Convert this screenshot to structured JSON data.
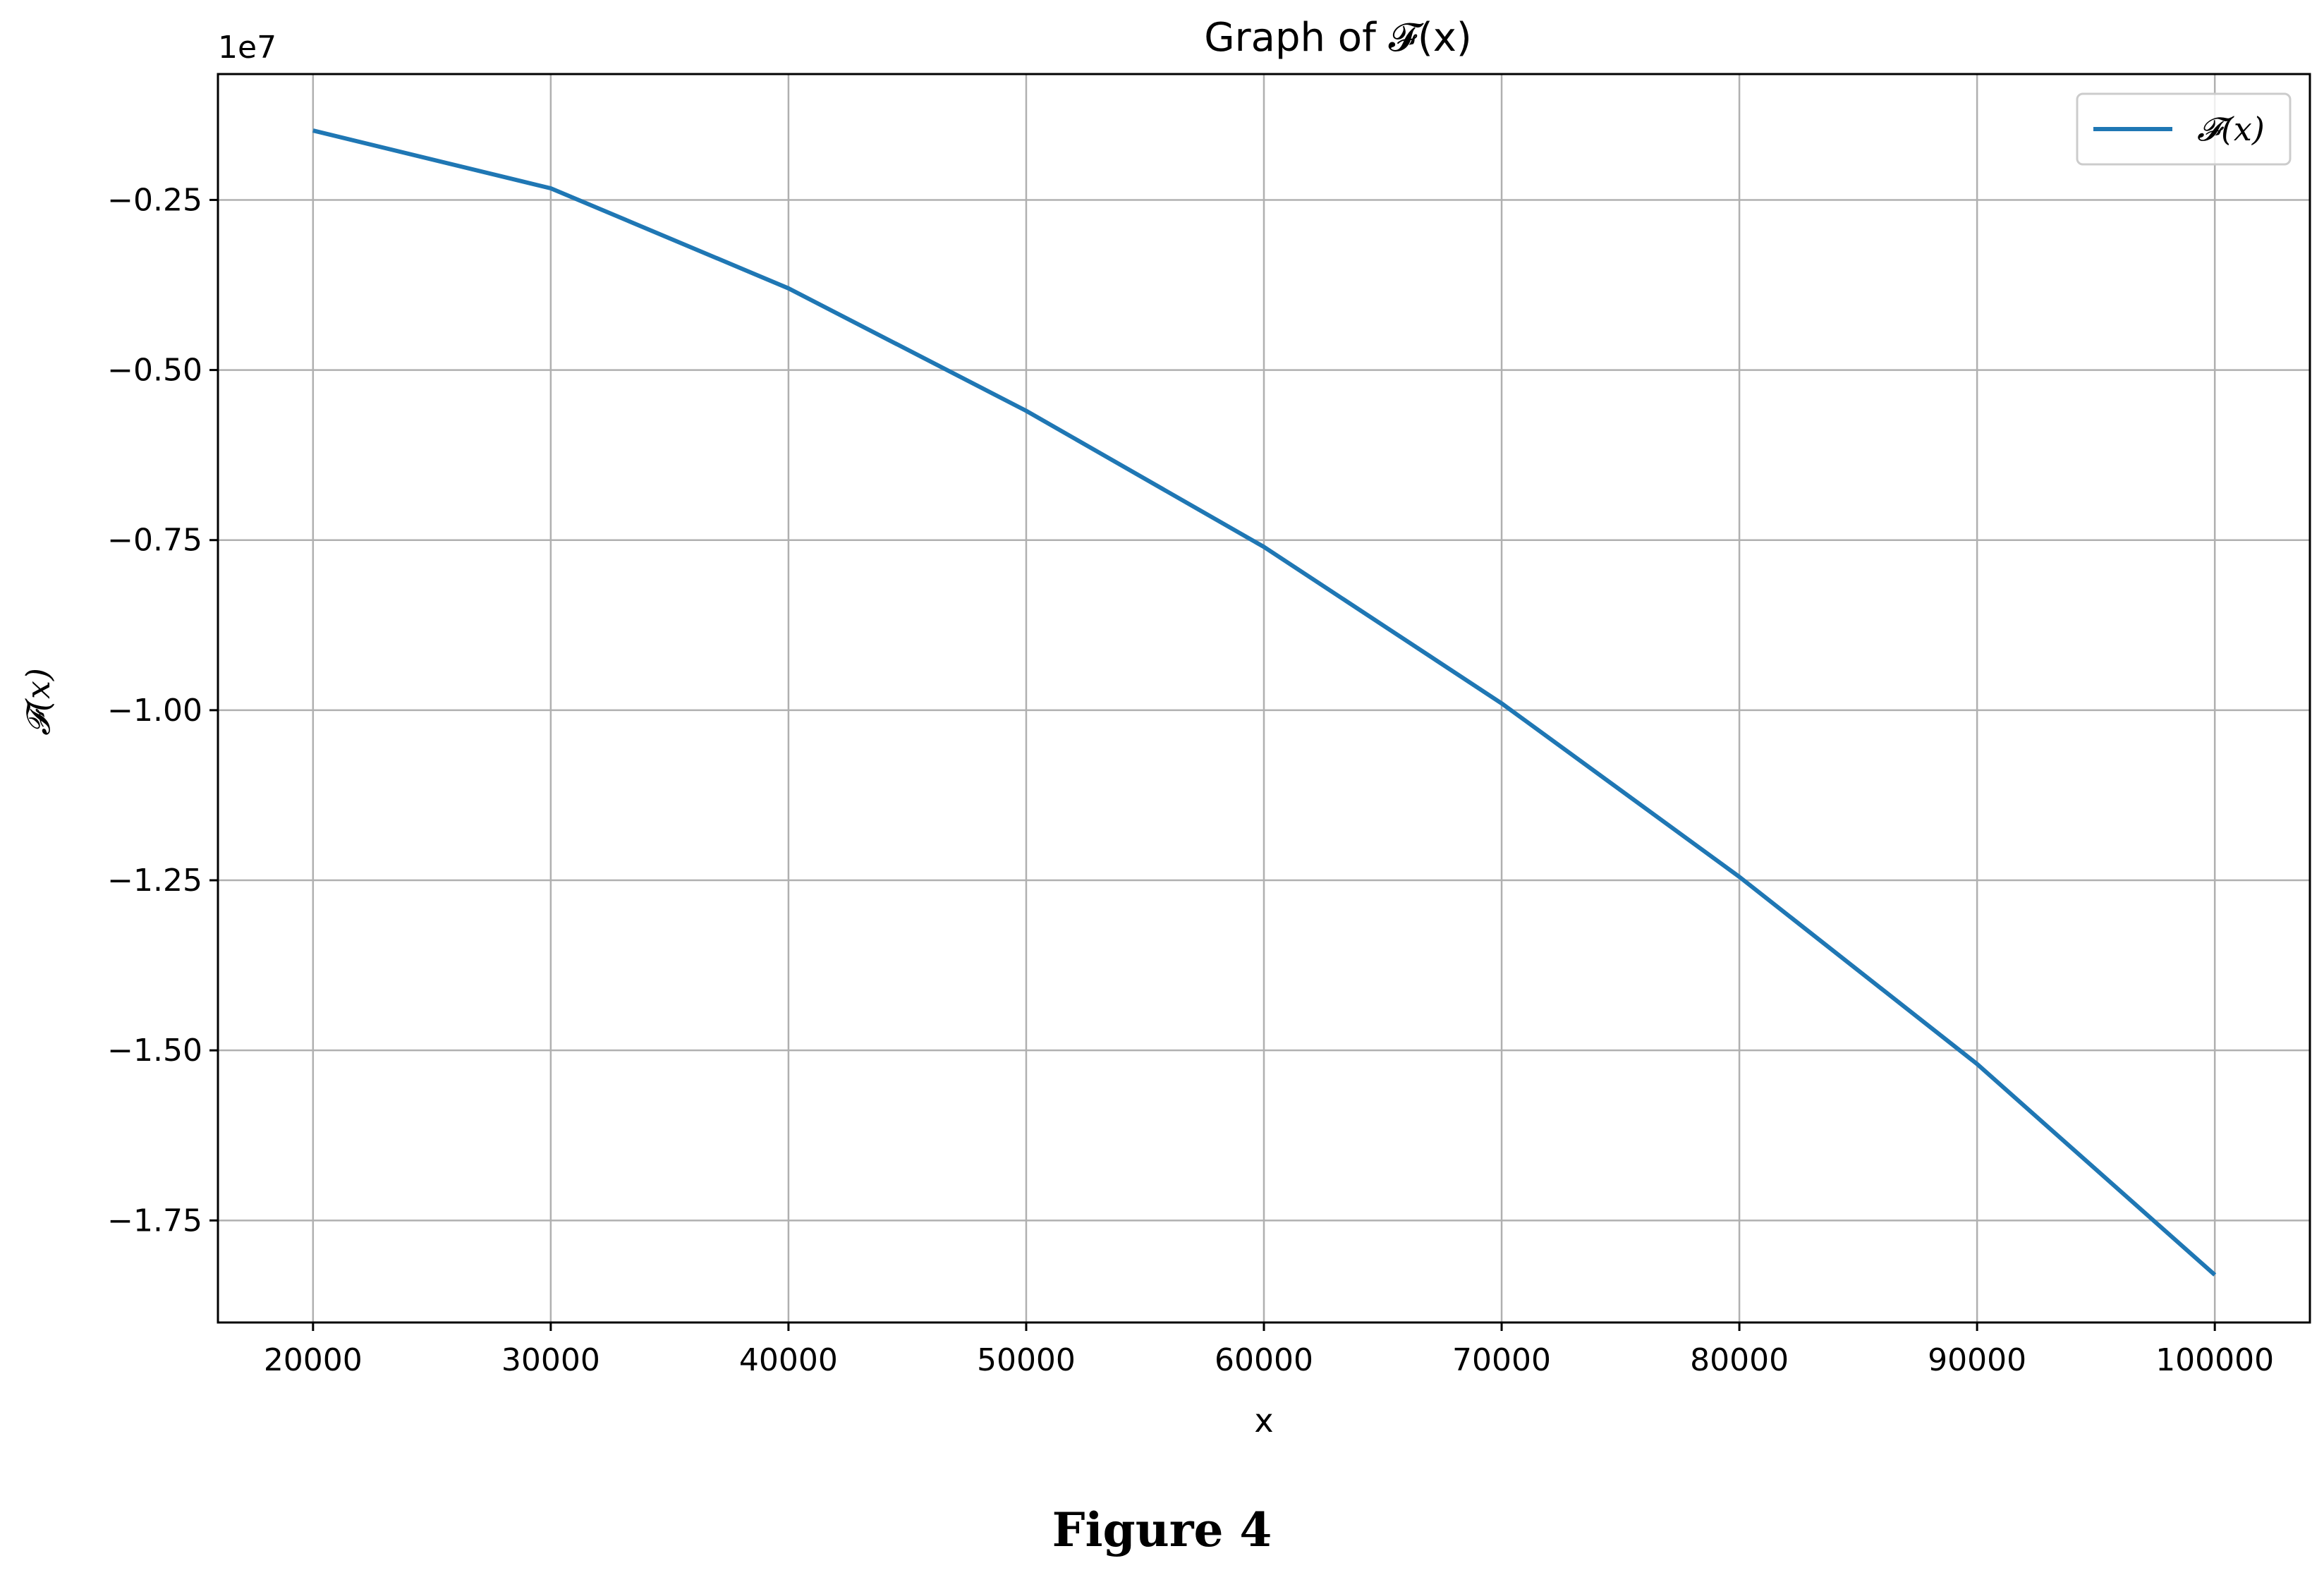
{
  "chart_data": {
    "type": "line",
    "title": "Graph of 𝓕(x)",
    "xlabel": "x",
    "ylabel": "𝓕(x)",
    "y_offset_label": "1e7",
    "xlim": [
      16000,
      104000
    ],
    "ylim": [
      -1.9,
      -0.065
    ],
    "y_multiplier": 10000000,
    "x_ticks": [
      20000,
      30000,
      40000,
      50000,
      60000,
      70000,
      80000,
      90000,
      100000
    ],
    "x_tick_labels": [
      "20000",
      "30000",
      "40000",
      "50000",
      "60000",
      "70000",
      "80000",
      "90000",
      "100000"
    ],
    "y_ticks": [
      -0.25,
      -0.5,
      -0.75,
      -1.0,
      -1.25,
      -1.5,
      -1.75
    ],
    "y_tick_labels": [
      "−0.25",
      "−0.50",
      "−0.75",
      "−1.00",
      "−1.25",
      "−1.50",
      "−1.75"
    ],
    "grid": true,
    "legend_position": "top-right",
    "colors": {
      "series": "#1f77b4",
      "grid": "#b0b0b0"
    },
    "series": [
      {
        "name": "𝓕(x)",
        "x": [
          20000,
          30000,
          40000,
          50000,
          60000,
          70000,
          80000,
          90000,
          100000
        ],
        "values": [
          -0.148,
          -0.233,
          -0.38,
          -0.56,
          -0.76,
          -0.99,
          -1.245,
          -1.52,
          -1.83
        ]
      }
    ]
  },
  "caption": "Figure 4"
}
